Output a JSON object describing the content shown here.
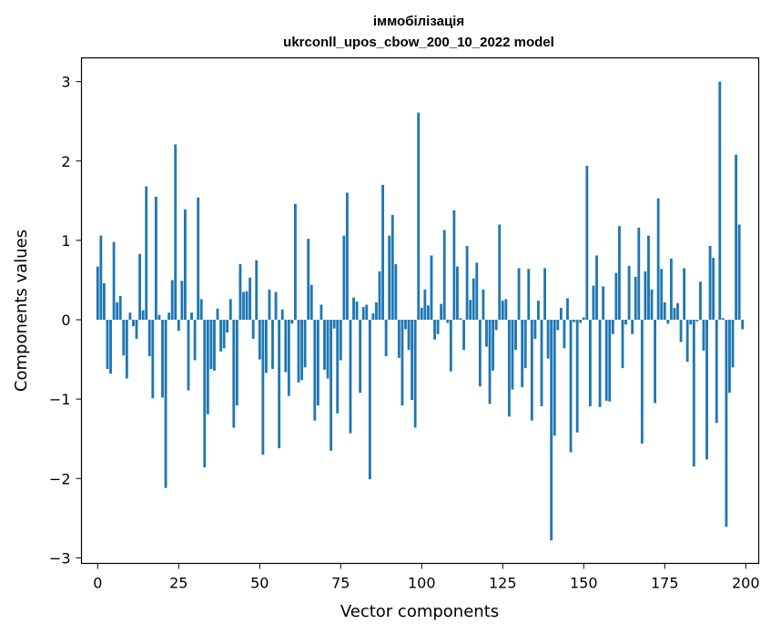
{
  "chart_data": {
    "type": "bar",
    "title": "іммобілізація",
    "subtitle": "ukrconll_upos_cbow_200_10_2022 model",
    "xlabel": "Vector components",
    "ylabel": "Components values",
    "xlim": [
      -5,
      204
    ],
    "ylim": [
      -3.07,
      3.3
    ],
    "xticks": [
      0,
      25,
      50,
      75,
      100,
      125,
      150,
      175,
      200
    ],
    "xtick_labels": [
      "0",
      "25",
      "50",
      "75",
      "100",
      "125",
      "150",
      "175",
      "200"
    ],
    "yticks": [
      -3,
      -2,
      -1,
      0,
      1,
      2,
      3
    ],
    "ytick_labels": [
      "−3",
      "−2",
      "−1",
      "0",
      "1",
      "2",
      "3"
    ],
    "grid": false,
    "legend": "none",
    "color": "#1f77b4",
    "x": [
      0,
      1,
      2,
      3,
      4,
      5,
      6,
      7,
      8,
      9,
      10,
      11,
      12,
      13,
      14,
      15,
      16,
      17,
      18,
      19,
      20,
      21,
      22,
      23,
      24,
      25,
      26,
      27,
      28,
      29,
      30,
      31,
      32,
      33,
      34,
      35,
      36,
      37,
      38,
      39,
      40,
      41,
      42,
      43,
      44,
      45,
      46,
      47,
      48,
      49,
      50,
      51,
      52,
      53,
      54,
      55,
      56,
      57,
      58,
      59,
      60,
      61,
      62,
      63,
      64,
      65,
      66,
      67,
      68,
      69,
      70,
      71,
      72,
      73,
      74,
      75,
      76,
      77,
      78,
      79,
      80,
      81,
      82,
      83,
      84,
      85,
      86,
      87,
      88,
      89,
      90,
      91,
      92,
      93,
      94,
      95,
      96,
      97,
      98,
      99,
      100,
      101,
      102,
      103,
      104,
      105,
      106,
      107,
      108,
      109,
      110,
      111,
      112,
      113,
      114,
      115,
      116,
      117,
      118,
      119,
      120,
      121,
      122,
      123,
      124,
      125,
      126,
      127,
      128,
      129,
      130,
      131,
      132,
      133,
      134,
      135,
      136,
      137,
      138,
      139,
      140,
      141,
      142,
      143,
      144,
      145,
      146,
      147,
      148,
      149,
      150,
      151,
      152,
      153,
      154,
      155,
      156,
      157,
      158,
      159,
      160,
      161,
      162,
      163,
      164,
      165,
      166,
      167,
      168,
      169,
      170,
      171,
      172,
      173,
      174,
      175,
      176,
      177,
      178,
      179,
      180,
      181,
      182,
      183,
      184,
      185,
      186,
      187,
      188,
      189,
      190,
      191,
      192,
      193,
      194,
      195,
      196,
      197,
      198,
      199
    ],
    "values": [
      0.67,
      1.06,
      0.46,
      -0.62,
      -0.68,
      0.98,
      0.22,
      0.3,
      -0.45,
      -0.74,
      0.09,
      -0.08,
      -0.24,
      0.83,
      0.12,
      1.68,
      -0.46,
      -0.99,
      1.55,
      0.06,
      -0.98,
      -2.12,
      0.09,
      0.5,
      2.21,
      -0.14,
      0.49,
      1.39,
      -0.89,
      0.09,
      -0.51,
      1.54,
      0.26,
      -1.86,
      -1.19,
      -0.62,
      -0.64,
      0.14,
      -0.4,
      -0.36,
      -0.16,
      0.26,
      -1.36,
      -1.08,
      0.7,
      0.35,
      0.36,
      0.53,
      -0.24,
      0.75,
      -0.5,
      -1.7,
      -0.67,
      0.38,
      -0.62,
      0.35,
      -1.62,
      0.13,
      -0.66,
      -0.96,
      -0.05,
      1.46,
      -0.79,
      -0.76,
      -0.6,
      1.02,
      0.44,
      -1.27,
      -1.08,
      0.19,
      -0.63,
      -0.74,
      -1.65,
      -0.11,
      -1.18,
      -0.51,
      1.06,
      1.6,
      -1.43,
      0.28,
      0.23,
      -0.92,
      0.16,
      0.19,
      -2.01,
      0.08,
      0.22,
      0.61,
      1.7,
      -0.46,
      1.06,
      1.32,
      0.7,
      -0.48,
      -1.08,
      -0.12,
      -0.38,
      -1.01,
      -1.36,
      2.61,
      0.15,
      0.38,
      0.18,
      0.81,
      -0.25,
      -0.18,
      0.2,
      1.13,
      -0.04,
      -0.65,
      1.38,
      0.67,
      0.02,
      -0.38,
      0.93,
      0.25,
      0.52,
      0.72,
      -0.84,
      0.38,
      -0.34,
      -1.06,
      -0.64,
      -0.13,
      1.2,
      0.24,
      0.26,
      -1.22,
      -0.88,
      -0.38,
      0.65,
      -0.85,
      -0.61,
      0.64,
      -1.27,
      -0.24,
      0.24,
      -1.09,
      0.65,
      -0.49,
      -2.78,
      -1.46,
      -0.13,
      0.15,
      -0.36,
      0.27,
      -1.67,
      -0.03,
      -1.42,
      -0.04,
      0.03,
      1.94,
      -1.09,
      0.43,
      0.81,
      -1.1,
      0.42,
      -1.02,
      -1.03,
      -0.18,
      0.59,
      1.18,
      -0.61,
      -0.06,
      0.68,
      -0.18,
      0.54,
      1.16,
      -1.56,
      0.61,
      1.06,
      0.38,
      -1.05,
      1.53,
      0.64,
      0.22,
      -0.05,
      0.77,
      0.15,
      0.21,
      -0.28,
      0.65,
      -0.53,
      -0.06,
      -1.85,
      -0.02,
      0.48,
      -0.39,
      -1.76,
      0.93,
      0.78,
      -1.3,
      3.0,
      0.02,
      -2.61,
      -0.92,
      -0.6,
      2.08,
      1.2,
      -0.12
    ]
  }
}
